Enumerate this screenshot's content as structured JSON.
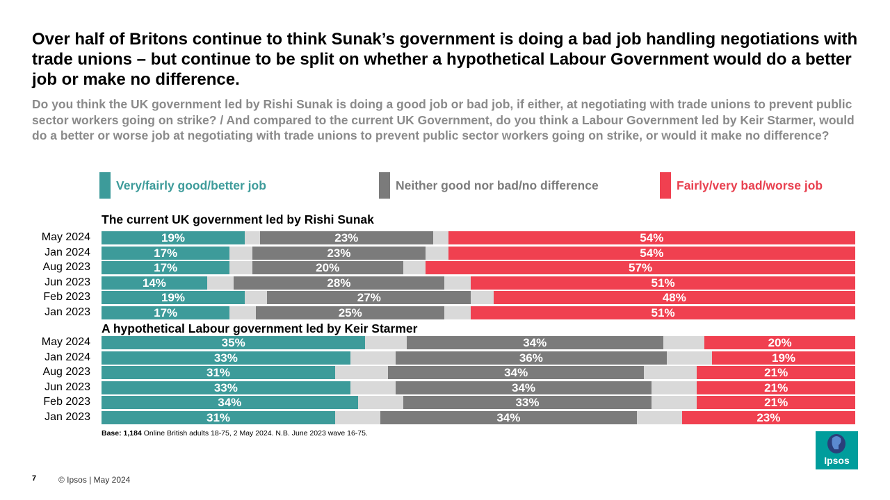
{
  "title": "Over half of Britons continue to think Sunak’s government is doing a bad job handling negotiations with trade unions – but continue to be split on whether a hypothetical Labour Government would do a better job or make no difference.",
  "question": "Do you think the UK government led by Rishi Sunak is doing a good job or bad job, if either, at negotiating with trade unions to prevent public sector workers going on strike? / And compared to the current UK Government, do you think a Labour Government led by Keir Starmer, would do a better or worse job at negotiating with trade unions to prevent public sector workers going on strike, or would it make no difference?",
  "legend": [
    {
      "label": "Very/fairly  good/better job",
      "color": "#3d9b9a",
      "text_color": "#3d9b9a"
    },
    {
      "label": "Neither good nor bad/no difference",
      "color": "#7b7b7b",
      "text_color": "#7b7b7b"
    },
    {
      "label": "Fairly/very  bad/worse job",
      "color": "#f04050",
      "text_color": "#e8404f"
    }
  ],
  "colors": {
    "good": "#3d9b9a",
    "gap": "#d9d9d9",
    "neither": "#7b7b7b",
    "bad": "#f04050"
  },
  "chart_data": {
    "type": "bar",
    "orientation": "horizontal",
    "stacked": true,
    "series_names": [
      "Very/fairly  good/better job",
      "Neither good nor bad/no difference",
      "Fairly/very  bad/worse job"
    ],
    "groups": [
      {
        "title": "The current UK government led by Rishi Sunak",
        "categories": [
          "May 2024",
          "Jan 2024",
          "Aug 2023",
          "Jun 2023",
          "Feb 2023",
          "Jan 2023"
        ],
        "good": [
          19,
          17,
          17,
          14,
          19,
          17
        ],
        "neither": [
          23,
          23,
          20,
          28,
          27,
          25
        ],
        "bad": [
          54,
          54,
          57,
          51,
          48,
          51
        ]
      },
      {
        "title": "A hypothetical Labour government led by Keir Starmer",
        "categories": [
          "May 2024",
          "Jan 2024",
          "Aug 2023",
          "Jun 2023",
          "Feb 2023",
          "Jan 2023"
        ],
        "good": [
          35,
          33,
          31,
          33,
          34,
          31
        ],
        "neither": [
          34,
          36,
          34,
          34,
          33,
          34
        ],
        "bad": [
          20,
          19,
          21,
          21,
          21,
          23
        ]
      }
    ]
  },
  "base_note": {
    "bold": "Base: 1,184",
    "text": " Online British adults 18-75, 2 May  2024. N.B. June 2023 wave 16-75."
  },
  "footer": {
    "page_number": "7",
    "copyright": "© Ipsos | May 2024",
    "logo_text": "Ipsos"
  }
}
